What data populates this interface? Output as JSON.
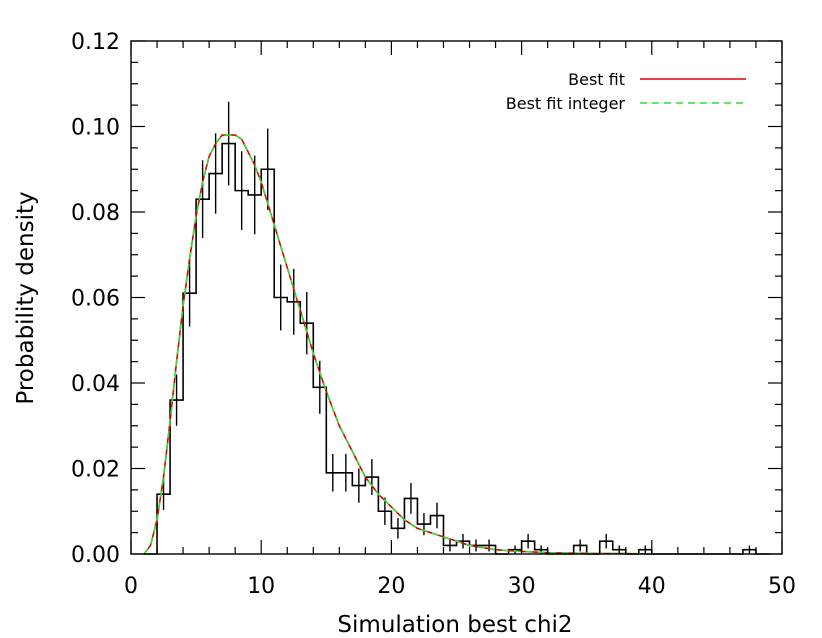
{
  "chart_data": {
    "type": "line",
    "title": "",
    "xlabel": "Simulation best chi2",
    "ylabel": "Probability density",
    "xlim": [
      0,
      50
    ],
    "ylim": [
      0,
      0.12
    ],
    "x_ticks": [
      "0",
      "10",
      "20",
      "30",
      "40",
      "50"
    ],
    "y_ticks": [
      "0.00",
      "0.02",
      "0.04",
      "0.06",
      "0.08",
      "0.10",
      "0.12"
    ],
    "legend_position": "top-right",
    "colors": {
      "histogram": "#000000",
      "best_fit": "#dd0000",
      "best_fit_integer": "#33dd33"
    },
    "histogram": {
      "bin_width": 1,
      "bin_starts": [
        1,
        2,
        3,
        4,
        5,
        6,
        7,
        8,
        9,
        10,
        11,
        12,
        13,
        14,
        15,
        16,
        17,
        18,
        19,
        20,
        21,
        22,
        23,
        24,
        25,
        26,
        27,
        28,
        29,
        30,
        31,
        32,
        33,
        34,
        35,
        36,
        37,
        38,
        39,
        40,
        41,
        42,
        43,
        44,
        45,
        46,
        47,
        48
      ],
      "values": [
        0.0,
        0.014,
        0.036,
        0.061,
        0.083,
        0.089,
        0.096,
        0.085,
        0.084,
        0.09,
        0.06,
        0.059,
        0.054,
        0.039,
        0.019,
        0.019,
        0.016,
        0.018,
        0.01,
        0.006,
        0.013,
        0.007,
        0.009,
        0.002,
        0.003,
        0.002,
        0.002,
        0.0,
        0.001,
        0.003,
        0.001,
        0.0,
        0.0,
        0.002,
        0.0,
        0.003,
        0.001,
        0.0,
        0.001,
        0.0,
        0.0,
        0.0,
        0.0,
        0.0,
        0.0,
        0.0,
        0.001,
        0.0
      ],
      "errors": [
        0.0,
        0.0037,
        0.006,
        0.0078,
        0.0091,
        0.0094,
        0.0098,
        0.0092,
        0.0092,
        0.0095,
        0.0077,
        0.0077,
        0.0073,
        0.0062,
        0.0044,
        0.0044,
        0.004,
        0.0042,
        0.0032,
        0.0024,
        0.0036,
        0.0026,
        0.003,
        0.0014,
        0.0017,
        0.0014,
        0.0014,
        0.0,
        0.001,
        0.0017,
        0.001,
        0.0,
        0.0,
        0.0014,
        0.0,
        0.0017,
        0.001,
        0.0,
        0.001,
        0.0,
        0.0,
        0.0,
        0.0,
        0.0,
        0.0,
        0.0,
        0.001,
        0.0
      ]
    },
    "series": [
      {
        "name": "Best fit",
        "x": [
          1,
          1.5,
          2,
          2.5,
          3,
          3.5,
          4,
          4.5,
          5,
          5.5,
          6,
          6.5,
          7,
          7.5,
          8,
          8.5,
          9,
          9.5,
          10,
          10.5,
          11,
          11.5,
          12,
          12.5,
          13,
          13.5,
          14,
          15,
          16,
          17,
          18,
          19,
          20,
          21,
          22,
          23,
          24,
          25,
          26,
          27,
          28,
          29,
          30,
          32,
          34,
          36,
          38,
          40
        ],
        "values": [
          0.0,
          0.002,
          0.008,
          0.018,
          0.031,
          0.045,
          0.058,
          0.069,
          0.079,
          0.087,
          0.093,
          0.096,
          0.098,
          0.098,
          0.098,
          0.097,
          0.094,
          0.091,
          0.087,
          0.082,
          0.077,
          0.072,
          0.067,
          0.062,
          0.057,
          0.052,
          0.047,
          0.038,
          0.03,
          0.024,
          0.018,
          0.014,
          0.011,
          0.008,
          0.006,
          0.005,
          0.004,
          0.003,
          0.002,
          0.0015,
          0.001,
          0.0008,
          0.0006,
          0.0003,
          0.0002,
          0.0001,
          0.0001,
          0.0
        ]
      },
      {
        "name": "Best fit integer",
        "x": [
          1,
          1.5,
          2,
          2.5,
          3,
          3.5,
          4,
          4.5,
          5,
          5.5,
          6,
          6.5,
          7,
          7.5,
          8,
          8.5,
          9,
          9.5,
          10,
          10.5,
          11,
          11.5,
          12,
          12.5,
          13,
          13.5,
          14,
          15,
          16,
          17,
          18,
          19,
          20,
          21,
          22,
          23,
          24,
          25,
          26,
          27,
          28,
          29,
          30,
          32,
          34,
          36,
          38,
          40
        ],
        "values": [
          0.0,
          0.002,
          0.008,
          0.018,
          0.031,
          0.045,
          0.058,
          0.069,
          0.079,
          0.087,
          0.093,
          0.096,
          0.098,
          0.098,
          0.098,
          0.097,
          0.094,
          0.091,
          0.087,
          0.082,
          0.077,
          0.072,
          0.067,
          0.062,
          0.057,
          0.052,
          0.047,
          0.038,
          0.03,
          0.024,
          0.018,
          0.014,
          0.011,
          0.008,
          0.006,
          0.005,
          0.004,
          0.003,
          0.002,
          0.0015,
          0.001,
          0.0008,
          0.0006,
          0.0003,
          0.0002,
          0.0001,
          0.0001,
          0.0
        ]
      }
    ]
  }
}
